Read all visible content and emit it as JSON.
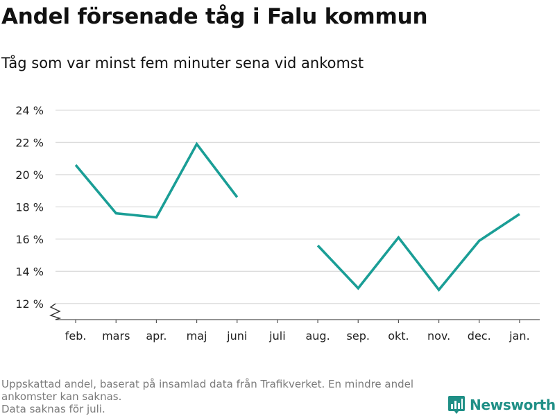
{
  "title": "Andel försenade tåg i Falu kommun",
  "subtitle": "Tåg som var minst fem minuter sena vid ankomst",
  "notes": [
    "Uppskattad andel, baserat på insamlad data från Trafikverket. En mindre andel",
    "ankomster kan saknas.",
    "Data saknas för juli."
  ],
  "brand": {
    "name": "Newsworthy",
    "color": "#1f8f86",
    "icon": "bar-chart-logo-icon"
  },
  "colors": {
    "line": "#1a9e96",
    "grid": "#dcdcdc",
    "axis": "#555555",
    "text": "#222222"
  },
  "chart_data": {
    "type": "line",
    "categories": [
      "feb.",
      "mars",
      "apr.",
      "maj",
      "juni",
      "juli",
      "aug.",
      "sep.",
      "okt.",
      "nov.",
      "dec.",
      "jan."
    ],
    "series": [
      {
        "values": [
          20.6,
          17.6,
          17.35,
          21.9,
          18.6,
          null,
          15.6,
          12.95,
          16.1,
          12.85,
          15.9,
          17.55
        ]
      }
    ],
    "ylim": [
      11,
      24
    ],
    "yticks": [
      12,
      14,
      16,
      18,
      20,
      22,
      24
    ],
    "ytick_labels": [
      "12 %",
      "14 %",
      "16 %",
      "18 %",
      "20 %",
      "22 %",
      "24 %"
    ],
    "y_axis_break": true,
    "grid": true
  }
}
